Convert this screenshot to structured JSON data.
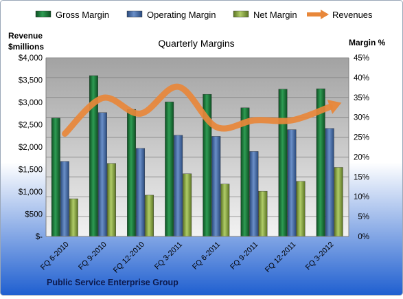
{
  "chart_data": {
    "type": "bar",
    "title": "Quarterly Margins",
    "company": "Public Service Enterprise Group",
    "y_left_label_line1": "Revenue",
    "y_left_label_line2": "$millions",
    "y_right_label": "Margin %",
    "categories": [
      "FQ 6-2010",
      "FQ 9-2010",
      "FQ 12-2010",
      "FQ 3-2011",
      "FQ 6-2011",
      "FQ 9-2011",
      "FQ 12-2011",
      "FQ 3-2012"
    ],
    "ylim_left": [
      0,
      4000
    ],
    "ylim_right": [
      0,
      45
    ],
    "y_left_ticks": [
      "$-",
      "$500",
      "$1,000",
      "$1,500",
      "$2,000",
      "$2,500",
      "$3,000",
      "$3,500",
      "$4,000"
    ],
    "y_right_ticks": [
      "0%",
      "5%",
      "10%",
      "15%",
      "20%",
      "25%",
      "30%",
      "35%",
      "40%",
      "45%"
    ],
    "legend_position": "top",
    "grid": true,
    "series": [
      {
        "name": "Gross Margin",
        "kind": "bar",
        "axis": "right",
        "color": "#1e7a3c",
        "values": [
          29.8,
          40.5,
          32.0,
          33.9,
          35.8,
          32.4,
          37.1,
          37.2
        ]
      },
      {
        "name": "Operating Margin",
        "kind": "bar",
        "axis": "right",
        "color": "#4a6ea8",
        "values": [
          18.9,
          31.2,
          22.2,
          25.5,
          25.2,
          21.4,
          26.9,
          27.2
        ]
      },
      {
        "name": "Net Margin",
        "kind": "bar",
        "axis": "right",
        "color": "#8aa845",
        "values": [
          9.5,
          18.4,
          10.4,
          15.8,
          13.2,
          11.4,
          13.9,
          17.4
        ]
      },
      {
        "name": "Revenues",
        "kind": "line",
        "axis": "left",
        "color": "#e8873a",
        "values": [
          2300,
          3100,
          2750,
          3350,
          2450,
          2600,
          2600,
          2900
        ]
      }
    ]
  }
}
